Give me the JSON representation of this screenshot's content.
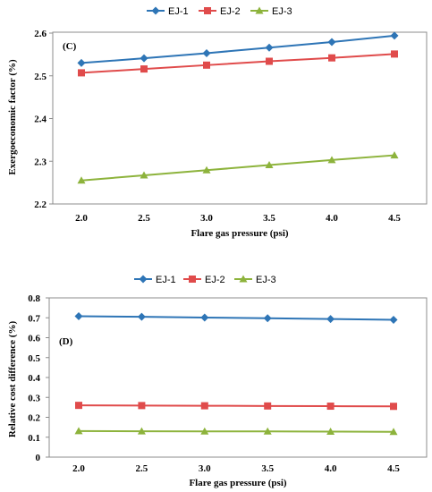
{
  "chart_data": [
    {
      "type": "line",
      "panel_label": "(C)",
      "x": [
        2.0,
        2.5,
        3.0,
        3.5,
        4.0,
        4.5
      ],
      "x_tick_labels": [
        "2.0",
        "2.5",
        "3.0",
        "3.5",
        "4.0",
        "4.5"
      ],
      "series": [
        {
          "name": "EJ-1",
          "values": [
            2.53,
            2.541,
            2.553,
            2.566,
            2.579,
            2.594
          ],
          "color": "#2e75b6",
          "marker": "diamond"
        },
        {
          "name": "EJ-2",
          "values": [
            2.507,
            2.516,
            2.525,
            2.534,
            2.542,
            2.551
          ],
          "color": "#e04b4b",
          "marker": "square"
        },
        {
          "name": "EJ-3",
          "values": [
            2.255,
            2.267,
            2.279,
            2.291,
            2.303,
            2.314
          ],
          "color": "#8db33c",
          "marker": "triangle"
        }
      ],
      "xlabel": "Flare gas pressure (psi)",
      "ylabel": "Exergoeconomic factor (%)",
      "ylim": [
        2.2,
        2.6
      ],
      "y_ticks": [
        2.2,
        2.3,
        2.4,
        2.5,
        2.6
      ],
      "y_tick_labels": [
        "2.2",
        "2.3",
        "2.4",
        "2.5",
        "2.6"
      ],
      "legend_position": "top",
      "grid": false
    },
    {
      "type": "line",
      "panel_label": "(D)",
      "x": [
        2.0,
        2.5,
        3.0,
        3.5,
        4.0,
        4.5
      ],
      "x_tick_labels": [
        "2.0",
        "2.5",
        "3.0",
        "3.5",
        "4.0",
        "4.5"
      ],
      "series": [
        {
          "name": "EJ-1",
          "values": [
            0.708,
            0.705,
            0.701,
            0.698,
            0.694,
            0.69
          ],
          "color": "#2e75b6",
          "marker": "diamond"
        },
        {
          "name": "EJ-2",
          "values": [
            0.26,
            0.259,
            0.258,
            0.257,
            0.256,
            0.255
          ],
          "color": "#e04b4b",
          "marker": "square"
        },
        {
          "name": "EJ-3",
          "values": [
            0.131,
            0.13,
            0.129,
            0.129,
            0.128,
            0.127
          ],
          "color": "#8db33c",
          "marker": "triangle"
        }
      ],
      "xlabel": "Flare gas pressure (psi)",
      "ylabel": "Relative cost difference (%)",
      "ylim": [
        0,
        0.8
      ],
      "y_ticks": [
        0,
        0.1,
        0.2,
        0.3,
        0.4,
        0.5,
        0.6,
        0.7,
        0.8
      ],
      "y_tick_labels": [
        "0",
        "0.1",
        "0.2",
        "0.3",
        "0.4",
        "0.5",
        "0.6",
        "0.7",
        "0.8"
      ],
      "legend_position": "top",
      "grid": false
    }
  ]
}
